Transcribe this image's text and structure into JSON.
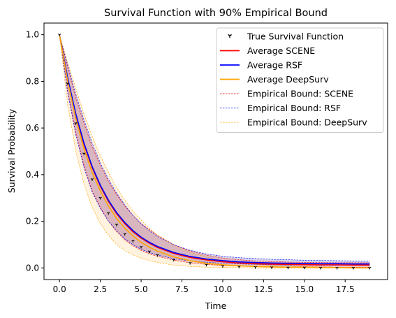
{
  "chart_data": {
    "type": "line",
    "title": "Survival Function with 90% Empirical Bound",
    "xlabel": "Time",
    "ylabel": "Survival Probability",
    "xlim": [
      -0.95,
      20.1
    ],
    "ylim": [
      -0.05,
      1.05
    ],
    "xticks": [
      0.0,
      2.5,
      5.0,
      7.5,
      10.0,
      12.5,
      15.0,
      17.5
    ],
    "xtick_labels": [
      "0.0",
      "2.5",
      "5.0",
      "7.5",
      "10.0",
      "12.5",
      "15.0",
      "17.5"
    ],
    "yticks": [
      0.0,
      0.2,
      0.4,
      0.6,
      0.8,
      1.0
    ],
    "ytick_labels": [
      "0.0",
      "0.2",
      "0.4",
      "0.6",
      "0.8",
      "1.0"
    ],
    "grid": false,
    "legend_position": "top-right",
    "x": [
      0,
      0.5,
      1,
      1.5,
      2,
      2.5,
      3,
      3.5,
      4,
      4.5,
      5,
      5.5,
      6,
      7,
      8,
      9,
      10,
      11,
      12,
      13,
      14,
      15,
      16,
      17,
      18,
      19
    ],
    "series": [
      {
        "name": "True Survival Function",
        "kind": "markers",
        "color": "#000000",
        "values": [
          1.0,
          0.79,
          0.62,
          0.49,
          0.38,
          0.3,
          0.235,
          0.185,
          0.145,
          0.115,
          0.09,
          0.07,
          0.055,
          0.034,
          0.021,
          0.013,
          0.008,
          0.005,
          0.003,
          0.002,
          0.001,
          0.001,
          0.0,
          0.0,
          0.0,
          0.0
        ]
      },
      {
        "name": "Average SCENE",
        "kind": "line",
        "color": "#ff0000",
        "values": [
          1.0,
          0.81,
          0.655,
          0.53,
          0.43,
          0.35,
          0.285,
          0.232,
          0.19,
          0.155,
          0.128,
          0.106,
          0.088,
          0.062,
          0.045,
          0.034,
          0.026,
          0.021,
          0.018,
          0.016,
          0.015,
          0.014,
          0.013,
          0.013,
          0.012,
          0.012
        ]
      },
      {
        "name": "Average RSF",
        "kind": "line",
        "color": "#0000ff",
        "values": [
          1.0,
          0.815,
          0.66,
          0.535,
          0.435,
          0.355,
          0.29,
          0.237,
          0.195,
          0.16,
          0.132,
          0.11,
          0.092,
          0.066,
          0.049,
          0.038,
          0.031,
          0.026,
          0.023,
          0.021,
          0.02,
          0.019,
          0.018,
          0.018,
          0.017,
          0.017
        ]
      },
      {
        "name": "Average DeepSurv",
        "kind": "line",
        "color": "#ffa500",
        "values": [
          1.0,
          0.8,
          0.64,
          0.51,
          0.41,
          0.33,
          0.265,
          0.212,
          0.17,
          0.137,
          0.11,
          0.089,
          0.072,
          0.047,
          0.031,
          0.02,
          0.013,
          0.009,
          0.006,
          0.004,
          0.003,
          0.002,
          0.001,
          0.001,
          0.0,
          0.0
        ]
      },
      {
        "name": "Empirical Bound: SCENE",
        "kind": "band",
        "color": "#ff0000",
        "fill": "#d9a0a6",
        "lower": [
          1.0,
          0.76,
          0.58,
          0.44,
          0.33,
          0.26,
          0.2,
          0.155,
          0.12,
          0.095,
          0.075,
          0.06,
          0.05,
          0.033,
          0.022,
          0.015,
          0.01,
          0.008,
          0.006,
          0.005,
          0.004,
          0.004,
          0.004,
          0.003,
          0.003,
          0.003
        ],
        "upper": [
          1.0,
          0.86,
          0.73,
          0.62,
          0.52,
          0.44,
          0.37,
          0.315,
          0.265,
          0.225,
          0.19,
          0.165,
          0.14,
          0.1,
          0.073,
          0.055,
          0.042,
          0.035,
          0.03,
          0.027,
          0.025,
          0.024,
          0.023,
          0.022,
          0.022,
          0.022
        ]
      },
      {
        "name": "Empirical Bound: RSF",
        "kind": "band",
        "color": "#0000ff",
        "fill": "#b7b0dc",
        "lower": [
          1.0,
          0.75,
          0.57,
          0.43,
          0.325,
          0.255,
          0.2,
          0.16,
          0.125,
          0.1,
          0.08,
          0.066,
          0.055,
          0.04,
          0.03,
          0.024,
          0.02,
          0.017,
          0.015,
          0.013,
          0.012,
          0.012,
          0.011,
          0.011,
          0.011,
          0.01
        ],
        "upper": [
          1.0,
          0.87,
          0.745,
          0.635,
          0.535,
          0.45,
          0.38,
          0.32,
          0.27,
          0.225,
          0.19,
          0.16,
          0.135,
          0.1,
          0.075,
          0.06,
          0.05,
          0.044,
          0.04,
          0.037,
          0.035,
          0.033,
          0.032,
          0.031,
          0.03,
          0.03
        ]
      },
      {
        "name": "Empirical Bound: DeepSurv",
        "kind": "band",
        "color": "#ffa500",
        "fill": "#ffe8c4",
        "lower": [
          1.0,
          0.7,
          0.5,
          0.36,
          0.26,
          0.19,
          0.14,
          0.1,
          0.075,
          0.056,
          0.042,
          0.031,
          0.023,
          0.012,
          0.006,
          0.003,
          0.002,
          0.001,
          0.0,
          0.0,
          0.0,
          0.0,
          0.0,
          0.0,
          0.0,
          0.0
        ],
        "upper": [
          1.0,
          0.88,
          0.77,
          0.66,
          0.565,
          0.48,
          0.41,
          0.345,
          0.29,
          0.245,
          0.205,
          0.17,
          0.14,
          0.097,
          0.067,
          0.046,
          0.032,
          0.022,
          0.015,
          0.011,
          0.008,
          0.006,
          0.004,
          0.003,
          0.002,
          0.002
        ]
      }
    ]
  }
}
